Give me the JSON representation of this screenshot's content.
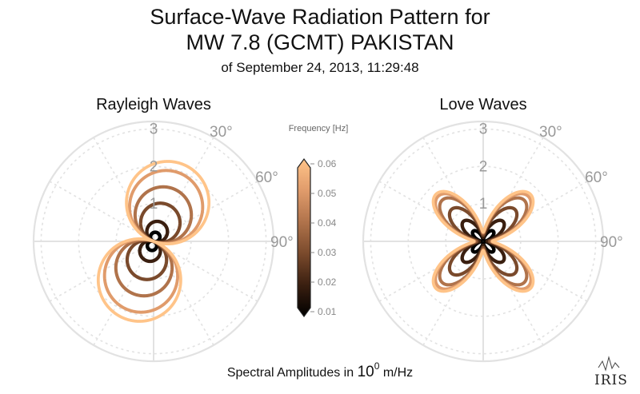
{
  "title": {
    "line1": "Surface-Wave Radiation Pattern for",
    "line2": "MW 7.8 (GCMT) PAKISTAN",
    "line3": "of September 24, 2013, 11:29:48"
  },
  "xlabel_prefix": "Spectral Amplitudes in ",
  "xlabel_base": "10",
  "xlabel_exp": "0",
  "xlabel_unit": " m/Hz",
  "logo": "IRIS",
  "colors": {
    "grid": "#e2e2e2",
    "ramp": [
      "#000000",
      "#3a1f10",
      "#7a4a2c",
      "#b0734b",
      "#e09b6b",
      "#ffc489"
    ]
  },
  "chart_data": [
    {
      "type": "polar",
      "title": "Rayleigh Waves",
      "r_ticks": [
        "1",
        "2",
        "3"
      ],
      "r_max": 3.2,
      "theta_tick_labels": [
        "30°",
        "60°",
        "90°"
      ],
      "theta_ticks_deg": [
        30,
        60,
        90
      ],
      "pattern": "two-lobe",
      "series": [
        {
          "frequency_hz": 0.01,
          "peak_amplitude": 0.25,
          "lobe_azimuth_deg": 20
        },
        {
          "frequency_hz": 0.02,
          "peak_amplitude": 0.55,
          "lobe_azimuth_deg": 20
        },
        {
          "frequency_hz": 0.03,
          "peak_amplitude": 1.05,
          "lobe_azimuth_deg": 20
        },
        {
          "frequency_hz": 0.04,
          "peak_amplitude": 1.5,
          "lobe_azimuth_deg": 20
        },
        {
          "frequency_hz": 0.05,
          "peak_amplitude": 1.95,
          "lobe_azimuth_deg": 20
        },
        {
          "frequency_hz": 0.06,
          "peak_amplitude": 2.2,
          "lobe_azimuth_deg": 20
        }
      ]
    },
    {
      "type": "polar",
      "title": "Love Waves",
      "r_ticks": [
        "1",
        "2",
        "3"
      ],
      "r_max": 3.2,
      "theta_tick_labels": [
        "30°",
        "60°",
        "90°"
      ],
      "theta_ticks_deg": [
        30,
        60,
        90
      ],
      "pattern": "four-lobe",
      "series": [
        {
          "frequency_hz": 0.01,
          "peak_amplitude": 0.38,
          "lobe_azimuth_deg": 45
        },
        {
          "frequency_hz": 0.02,
          "peak_amplitude": 0.75,
          "lobe_azimuth_deg": 45
        },
        {
          "frequency_hz": 0.03,
          "peak_amplitude": 1.2,
          "lobe_azimuth_deg": 45
        },
        {
          "frequency_hz": 0.04,
          "peak_amplitude": 1.55,
          "lobe_azimuth_deg": 45
        },
        {
          "frequency_hz": 0.05,
          "peak_amplitude": 1.7,
          "lobe_azimuth_deg": 45
        },
        {
          "frequency_hz": 0.06,
          "peak_amplitude": 1.78,
          "lobe_azimuth_deg": 45
        }
      ]
    },
    {
      "type": "colorbar",
      "title": "Frequency [Hz]",
      "range": [
        0.01,
        0.06
      ],
      "tick_labels": [
        "0.06",
        "0.05",
        "0.04",
        "0.03",
        "0.02",
        "0.01"
      ]
    }
  ]
}
